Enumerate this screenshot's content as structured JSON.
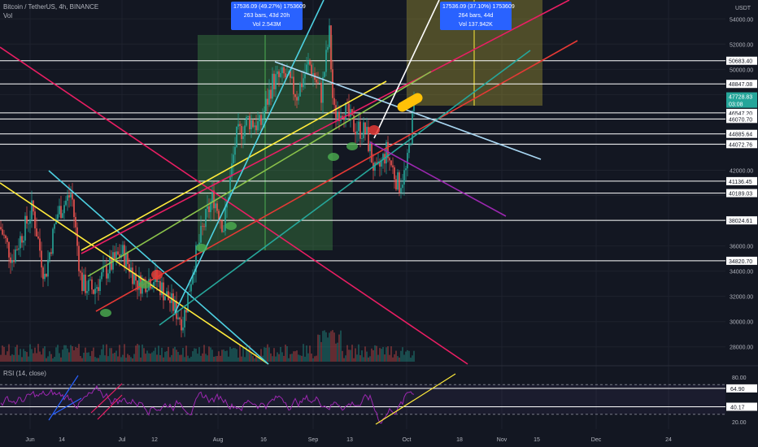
{
  "header": {
    "symbol_line": "Bitcoin / TetherUS, 4h, BINANCE",
    "vol_label": "Vol"
  },
  "rsi_label": "RSI (14, close)",
  "currency": "USDT",
  "colors": {
    "background": "#131722",
    "grid": "#1e222d",
    "candle_up": "#26a69a",
    "candle_down": "#ef5350",
    "hline": "#ffffff",
    "rsi": "#9c27b0",
    "accent": "#2962ff"
  },
  "measure_boxes": [
    {
      "line1": "17536.09 (49.27%) 1753609",
      "line2": "263 bars, 43d 20h",
      "line3": "Vol 2.543M"
    },
    {
      "line1": "17536.09 (37.10%) 1753609",
      "line2": "264 bars, 44d",
      "line3": "Vol 137.942K"
    }
  ],
  "price_axis_ticks": [
    "54000.00",
    "52000.00",
    "50000.00",
    "48000.00",
    "42000.00",
    "36000.00",
    "34000.00",
    "32000.00",
    "30000.00",
    "28000.00"
  ],
  "price_level_labels": [
    "50683.40",
    "48847.08",
    "46547.20",
    "46070.70",
    "44885.64",
    "44072.76",
    "41136.45",
    "40189.03",
    "38024.61",
    "34820.70"
  ],
  "last_price": {
    "price": "47728.83",
    "countdown": "03:08"
  },
  "rsi_axis_ticks": [
    "80.00",
    "20.00"
  ],
  "rsi_level_labels": [
    "64.90",
    "40.17"
  ],
  "time_axis_ticks": [
    "Jun",
    "14",
    "Jul",
    "12",
    "Aug",
    "16",
    "Sep",
    "13",
    "Oct",
    "18",
    "Nov",
    "15",
    "Dec",
    "24"
  ],
  "chart_data": {
    "type": "candlestick",
    "symbol": "BTCUSDT",
    "timeframe": "4h",
    "exchange": "BINANCE",
    "price_range": [
      26500,
      55500
    ],
    "horizontal_levels": [
      50683.4,
      48847.08,
      46547.2,
      46070.7,
      44885.64,
      44072.76,
      41136.45,
      40189.03,
      38024.61,
      34820.7
    ],
    "last_price": 47728.83,
    "price_path": [
      [
        "Jun",
        37500
      ],
      [
        "Jun 7",
        35000
      ],
      [
        "Jun 14",
        40000
      ],
      [
        "Jun 21",
        33000
      ],
      [
        "Jul",
        34500
      ],
      [
        "Jul 12",
        33000
      ],
      [
        "Jul 20",
        30000
      ],
      [
        "Aug",
        40000
      ],
      [
        "Aug 14",
        46000
      ],
      [
        "Aug 22",
        49500
      ],
      [
        "Sep",
        48000
      ],
      [
        "Sep 7",
        52800
      ],
      [
        "Sep 8",
        46000
      ],
      [
        "Sep 13",
        45500
      ],
      [
        "Sep 21",
        40000
      ],
      [
        "Sep 28",
        41500
      ],
      [
        "Oct",
        47728.83
      ]
    ],
    "rsi": {
      "period": 14,
      "upper_band": 70,
      "lower_band": 30,
      "levels": [
        64.9,
        40.17
      ],
      "range": [
        10,
        90
      ]
    }
  }
}
